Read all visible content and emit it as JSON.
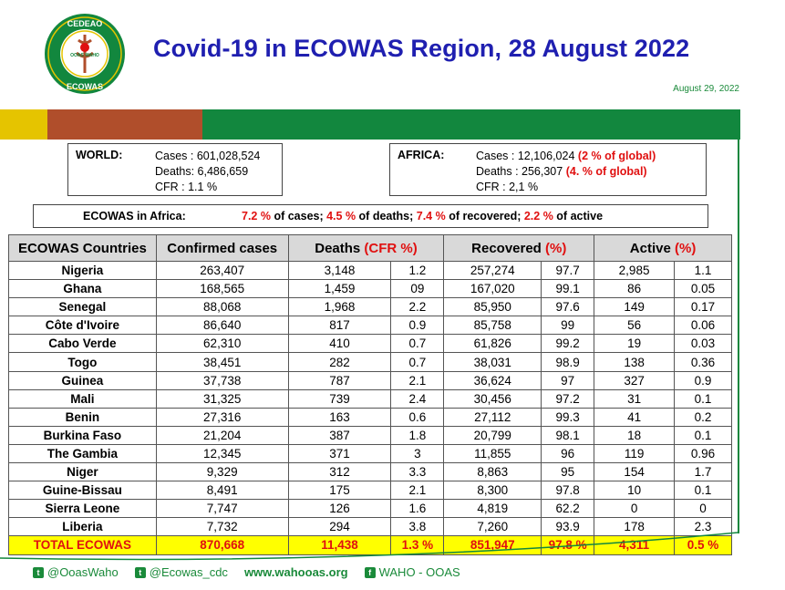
{
  "header": {
    "title": "Covid-19 in ECOWAS Region, 28 August 2022",
    "date": "August 29, 2022",
    "logo_top_text": "CEDEAO",
    "logo_bottom_text": "ECOWAS",
    "logo_side_text": "OOAS WAHO"
  },
  "colors": {
    "title": "#1f1fb0",
    "green": "#12873e",
    "yellow": "#e5c400",
    "brown": "#b04e2b",
    "red": "#e01010"
  },
  "world": {
    "label": "WORLD:",
    "cases": "Cases : 601,028,524",
    "deaths": "Deaths: 6,486,659",
    "cfr": "CFR : 1.1 %"
  },
  "africa": {
    "label": "AFRICA:",
    "cases": "Cases : 12,106,024",
    "cases_pct": "(2 % of global)",
    "deaths": "Deaths : 256,307",
    "deaths_pct": "(4. % of global)",
    "cfr": "CFR : 2,1 %"
  },
  "ecowas_africa": {
    "label": "ECOWAS in Africa:",
    "cases_pct": "7.2 %",
    "cases_txt": " of cases; ",
    "deaths_pct": "4.5 %",
    "deaths_txt": " of deaths; ",
    "recovered_pct": "7.4 %",
    "recovered_txt": " of recovered; ",
    "active_pct": "2.2 %",
    "active_txt": " of active"
  },
  "table": {
    "headers": {
      "country": "ECOWAS Countries",
      "confirmed": "Confirmed cases",
      "deaths": "Deaths ",
      "deaths_unit": "(CFR %)",
      "recovered": "Recovered ",
      "recovered_unit": "(%)",
      "active": "Active ",
      "active_unit": "(%)"
    },
    "rows": [
      {
        "country": "Nigeria",
        "confirmed": "263,407",
        "deaths": "3,148",
        "cfr": "1.2",
        "recovered": "257,274",
        "rec_pct": "97.7",
        "active": "2,985",
        "act_pct": "1.1"
      },
      {
        "country": "Ghana",
        "confirmed": "168,565",
        "deaths": "1,459",
        "cfr": "09",
        "recovered": "167,020",
        "rec_pct": "99.1",
        "active": "86",
        "act_pct": "0.05"
      },
      {
        "country": "Senegal",
        "confirmed": "88,068",
        "deaths": "1,968",
        "cfr": "2.2",
        "recovered": "85,950",
        "rec_pct": "97.6",
        "active": "149",
        "act_pct": "0.17"
      },
      {
        "country": "Côte d'Ivoire",
        "confirmed": "86,640",
        "deaths": "817",
        "cfr": "0.9",
        "recovered": "85,758",
        "rec_pct": "99",
        "active": "56",
        "act_pct": "0.06"
      },
      {
        "country": "Cabo Verde",
        "confirmed": "62,310",
        "deaths": "410",
        "cfr": "0.7",
        "recovered": "61,826",
        "rec_pct": "99.2",
        "active": "19",
        "act_pct": "0.03"
      },
      {
        "country": "Togo",
        "confirmed": "38,451",
        "deaths": "282",
        "cfr": "0.7",
        "recovered": "38,031",
        "rec_pct": "98.9",
        "active": "138",
        "act_pct": "0.36"
      },
      {
        "country": "Guinea",
        "confirmed": "37,738",
        "deaths": "787",
        "cfr": "2.1",
        "recovered": "36,624",
        "rec_pct": "97",
        "active": "327",
        "act_pct": "0.9"
      },
      {
        "country": "Mali",
        "confirmed": "31,325",
        "deaths": "739",
        "cfr": "2.4",
        "recovered": "30,456",
        "rec_pct": "97.2",
        "active": "31",
        "act_pct": "0.1"
      },
      {
        "country": "Benin",
        "confirmed": "27,316",
        "deaths": "163",
        "cfr": "0.6",
        "recovered": "27,112",
        "rec_pct": "99.3",
        "active": "41",
        "act_pct": "0.2"
      },
      {
        "country": "Burkina Faso",
        "confirmed": "21,204",
        "deaths": "387",
        "cfr": "1.8",
        "recovered": "20,799",
        "rec_pct": "98.1",
        "active": "18",
        "act_pct": "0.1"
      },
      {
        "country": "The Gambia",
        "confirmed": "12,345",
        "deaths": "371",
        "cfr": "3",
        "recovered": "11,855",
        "rec_pct": "96",
        "active": "119",
        "act_pct": "0.96"
      },
      {
        "country": "Niger",
        "confirmed": "9,329",
        "deaths": "312",
        "cfr": "3.3",
        "recovered": "8,863",
        "rec_pct": "95",
        "active": "154",
        "act_pct": "1.7"
      },
      {
        "country": "Guine-Bissau",
        "confirmed": "8,491",
        "deaths": "175",
        "cfr": "2.1",
        "recovered": "8,300",
        "rec_pct": "97.8",
        "active": "10",
        "act_pct": "0.1"
      },
      {
        "country": "Sierra Leone",
        "confirmed": "7,747",
        "deaths": "126",
        "cfr": "1.6",
        "recovered": "4,819",
        "rec_pct": "62.2",
        "active": "0",
        "act_pct": "0"
      },
      {
        "country": "Liberia",
        "confirmed": "7,732",
        "deaths": "294",
        "cfr": "3.8",
        "recovered": "7,260",
        "rec_pct": "93.9",
        "active": "178",
        "act_pct": "2.3"
      }
    ],
    "total": {
      "country": "TOTAL ECOWAS",
      "confirmed": "870,668",
      "deaths": "11,438",
      "cfr": "1.3 %",
      "recovered": "851,947",
      "rec_pct": "97.8 %",
      "active": "4,311",
      "act_pct": "0.5 %"
    }
  },
  "footer": {
    "twitter1": "@OoasWaho",
    "twitter2": "@Ecowas_cdc",
    "website": "www.wahooas.org",
    "facebook": "WAHO - OOAS"
  }
}
